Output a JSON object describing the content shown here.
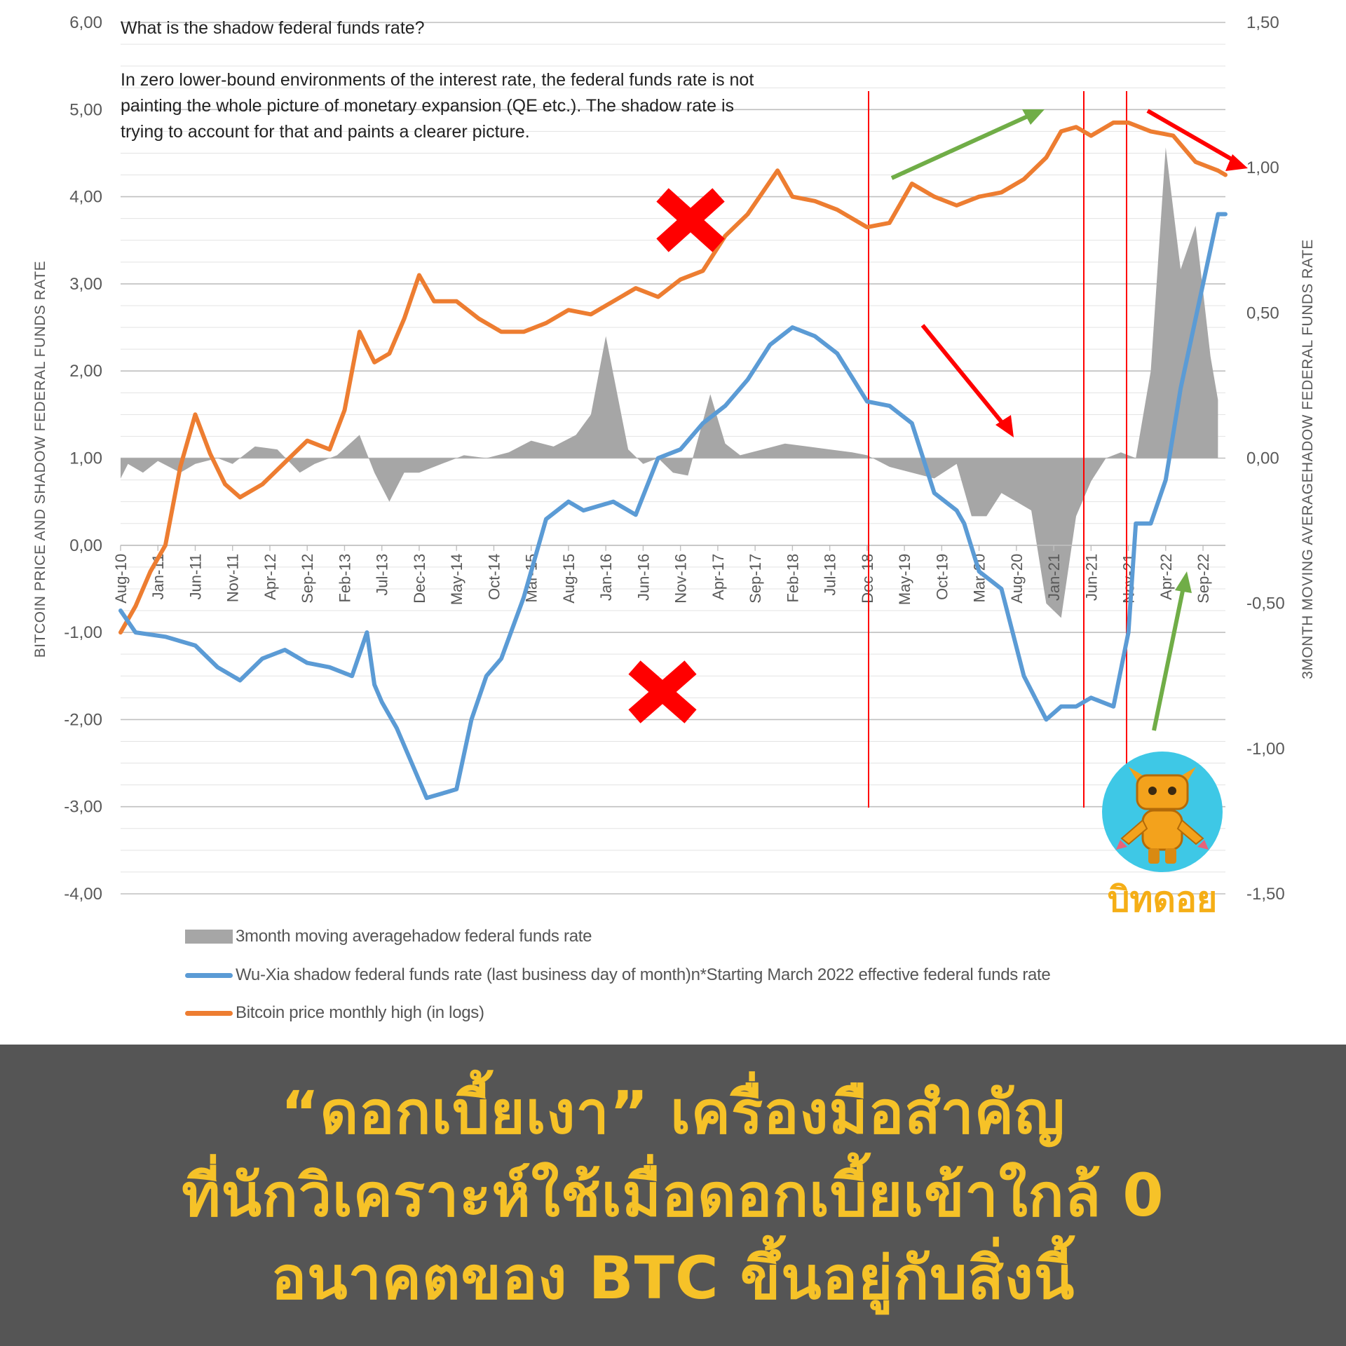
{
  "note": {
    "question": "What is the shadow federal funds rate?",
    "body": "In zero lower-bound environments of the interest rate, the federal funds rate is not painting the whole picture of monetary expansion (QE etc.). The shadow rate is trying to account for that and paints a clearer picture."
  },
  "legend": {
    "area": "3month moving averagehadow federal funds rate",
    "blue": "Wu-Xia shadow federal funds rate (last business day of month)n*Starting March 2022 effective federal funds rate",
    "orange": "Bitcoin price monthly high (in logs)"
  },
  "logo": {
    "text": "บิทดอย"
  },
  "banner": {
    "line1": "“ดอกเบี้ยเงา” เครื่องมือสำคัญ",
    "line2": "ที่นักวิเคราะห์ใช้เมื่อดอกเบี้ยเข้าใกล้ 0",
    "line3": "อนาคตของ BTC ขึ้นอยู่กับสิ่งนี้"
  },
  "colors": {
    "orange": "#ed7d31",
    "blue": "#5b9bd5",
    "gray": "#a6a6a6",
    "red": "#ff0000",
    "green": "#70ad47",
    "banner_bg": "#555555",
    "banner_text": "#f6c228"
  },
  "chart_data": {
    "type": "line",
    "ylabel": "BITCOIN PRICE AND SHADOW FEDERAL FUNDS RATE",
    "y2label": "3MONTH MOVING AVERAGEHADOW FEDERAL FUNDS RATE",
    "ylim": [
      -4,
      6
    ],
    "y2lim": [
      -1.5,
      1.5
    ],
    "yticks": [
      "6,00",
      "5,00",
      "4,00",
      "3,00",
      "2,00",
      "1,00",
      "0,00",
      "-1,00",
      "-2,00",
      "-3,00",
      "-4,00"
    ],
    "y2ticks": [
      "1,50",
      "1,00",
      "0,50",
      "0,00",
      "-0,50",
      "-1,00",
      "-1,50"
    ],
    "xlim": [
      "2010-08",
      "2022-12"
    ],
    "xticks": [
      "Aug-10",
      "Jan-11",
      "Jun-11",
      "Nov-11",
      "Apr-12",
      "Sep-12",
      "Feb-13",
      "Jul-13",
      "Dec-13",
      "May-14",
      "Oct-14",
      "Mar-15",
      "Aug-15",
      "Jan-16",
      "Jun-16",
      "Nov-16",
      "Apr-17",
      "Sep-17",
      "Feb-18",
      "Jul-18",
      "Dec-18",
      "May-19",
      "Oct-19",
      "Mar-20",
      "Aug-20",
      "Jan-21",
      "Jun-21",
      "Nov-21",
      "Apr-22",
      "Sep-22"
    ],
    "grid": true,
    "series": [
      {
        "name": "Bitcoin price monthly high (in logs)",
        "axis": "left",
        "x": [
          "2010-08",
          "2010-10",
          "2010-12",
          "2011-02",
          "2011-04",
          "2011-06",
          "2011-08",
          "2011-10",
          "2011-12",
          "2012-03",
          "2012-06",
          "2012-09",
          "2012-12",
          "2013-02",
          "2013-04",
          "2013-06",
          "2013-08",
          "2013-10",
          "2013-12",
          "2014-02",
          "2014-05",
          "2014-08",
          "2014-11",
          "2015-02",
          "2015-05",
          "2015-08",
          "2015-11",
          "2016-02",
          "2016-05",
          "2016-08",
          "2016-11",
          "2017-02",
          "2017-05",
          "2017-08",
          "2017-10",
          "2017-12",
          "2018-02",
          "2018-05",
          "2018-08",
          "2018-11",
          "2018-12",
          "2019-03",
          "2019-06",
          "2019-09",
          "2019-12",
          "2020-03",
          "2020-06",
          "2020-09",
          "2020-12",
          "2021-02",
          "2021-04",
          "2021-06",
          "2021-09",
          "2021-11",
          "2022-02",
          "2022-05",
          "2022-08",
          "2022-11",
          "2022-12"
        ],
        "values": [
          -1.0,
          -0.7,
          -0.3,
          0.0,
          0.9,
          1.5,
          1.05,
          0.7,
          0.55,
          0.7,
          0.95,
          1.2,
          1.1,
          1.55,
          2.45,
          2.1,
          2.2,
          2.6,
          3.1,
          2.8,
          2.8,
          2.6,
          2.45,
          2.45,
          2.55,
          2.7,
          2.65,
          2.8,
          2.95,
          2.85,
          3.05,
          3.15,
          3.55,
          3.8,
          4.05,
          4.3,
          4.0,
          3.95,
          3.85,
          3.7,
          3.65,
          3.7,
          4.15,
          4.0,
          3.9,
          4.0,
          4.05,
          4.2,
          4.45,
          4.75,
          4.8,
          4.7,
          4.85,
          4.85,
          4.75,
          4.7,
          4.4,
          4.3,
          4.25
        ]
      },
      {
        "name": "Wu-Xia shadow federal funds rate (last business day of month)n*Starting March 2022 effective federal funds rate",
        "axis": "left",
        "x": [
          "2010-08",
          "2010-10",
          "2011-02",
          "2011-06",
          "2011-09",
          "2011-12",
          "2012-03",
          "2012-06",
          "2012-09",
          "2012-12",
          "2013-03",
          "2013-05",
          "2013-06",
          "2013-07",
          "2013-09",
          "2013-11",
          "2014-01",
          "2014-03",
          "2014-05",
          "2014-07",
          "2014-09",
          "2014-11",
          "2015-02",
          "2015-05",
          "2015-08",
          "2015-10",
          "2015-12",
          "2016-02",
          "2016-05",
          "2016-08",
          "2016-11",
          "2017-02",
          "2017-05",
          "2017-08",
          "2017-11",
          "2018-02",
          "2018-05",
          "2018-08",
          "2018-12",
          "2019-03",
          "2019-06",
          "2019-09",
          "2019-12",
          "2020-01",
          "2020-03",
          "2020-06",
          "2020-09",
          "2020-12",
          "2021-02",
          "2021-04",
          "2021-06",
          "2021-09",
          "2021-11",
          "2021-12",
          "2022-02",
          "2022-04",
          "2022-06",
          "2022-09",
          "2022-11",
          "2022-12"
        ],
        "values": [
          -0.75,
          -1.0,
          -1.05,
          -1.15,
          -1.4,
          -1.55,
          -1.3,
          -1.2,
          -1.35,
          -1.4,
          -1.5,
          -1.0,
          -1.6,
          -1.8,
          -2.1,
          -2.5,
          -2.9,
          -2.85,
          -2.8,
          -2.0,
          -1.5,
          -1.3,
          -0.6,
          0.3,
          0.5,
          0.4,
          0.45,
          0.5,
          0.35,
          1.0,
          1.1,
          1.4,
          1.6,
          1.9,
          2.3,
          2.5,
          2.4,
          2.2,
          1.65,
          1.6,
          1.4,
          0.6,
          0.4,
          0.25,
          -0.3,
          -0.5,
          -1.5,
          -2.0,
          -1.85,
          -1.85,
          -1.75,
          -1.85,
          -1.0,
          0.25,
          0.25,
          0.75,
          1.8,
          3.0,
          3.8,
          3.8
        ]
      },
      {
        "name": "3month moving averagehadow federal funds rate",
        "axis": "right",
        "x": [
          "2010-08",
          "2010-09",
          "2010-11",
          "2011-01",
          "2011-04",
          "2011-06",
          "2011-09",
          "2011-11",
          "2012-02",
          "2012-05",
          "2012-08",
          "2012-10",
          "2013-01",
          "2013-04",
          "2013-06",
          "2013-08",
          "2013-10",
          "2013-12",
          "2014-03",
          "2014-06",
          "2014-09",
          "2014-12",
          "2015-03",
          "2015-06",
          "2015-09",
          "2015-11",
          "2016-01",
          "2016-04",
          "2016-06",
          "2016-08",
          "2016-10",
          "2016-12",
          "2017-03",
          "2017-05",
          "2017-07",
          "2017-10",
          "2018-01",
          "2018-04",
          "2018-07",
          "2018-10",
          "2018-12",
          "2019-03",
          "2019-06",
          "2019-09",
          "2019-12",
          "2020-02",
          "2020-04",
          "2020-06",
          "2020-08",
          "2020-10",
          "2020-12",
          "2021-02",
          "2021-04",
          "2021-06",
          "2021-08",
          "2021-10",
          "2021-12",
          "2022-02",
          "2022-04",
          "2022-06",
          "2022-08",
          "2022-10",
          "2022-11"
        ],
        "values": [
          -0.07,
          -0.02,
          -0.05,
          -0.01,
          -0.05,
          -0.02,
          0.0,
          -0.02,
          0.04,
          0.03,
          -0.05,
          -0.02,
          0.01,
          0.08,
          -0.05,
          -0.15,
          -0.05,
          -0.05,
          -0.02,
          0.01,
          0.0,
          0.02,
          0.06,
          0.04,
          0.08,
          0.15,
          0.42,
          0.03,
          -0.02,
          0.0,
          -0.05,
          -0.06,
          0.22,
          0.05,
          0.01,
          0.03,
          0.05,
          0.04,
          0.03,
          0.02,
          0.01,
          -0.03,
          -0.05,
          -0.07,
          -0.02,
          -0.2,
          -0.2,
          -0.12,
          -0.15,
          -0.18,
          -0.5,
          -0.55,
          -0.2,
          -0.08,
          0.0,
          0.02,
          0.0,
          0.3,
          1.07,
          0.65,
          0.8,
          0.35,
          0.2
        ]
      }
    ]
  }
}
